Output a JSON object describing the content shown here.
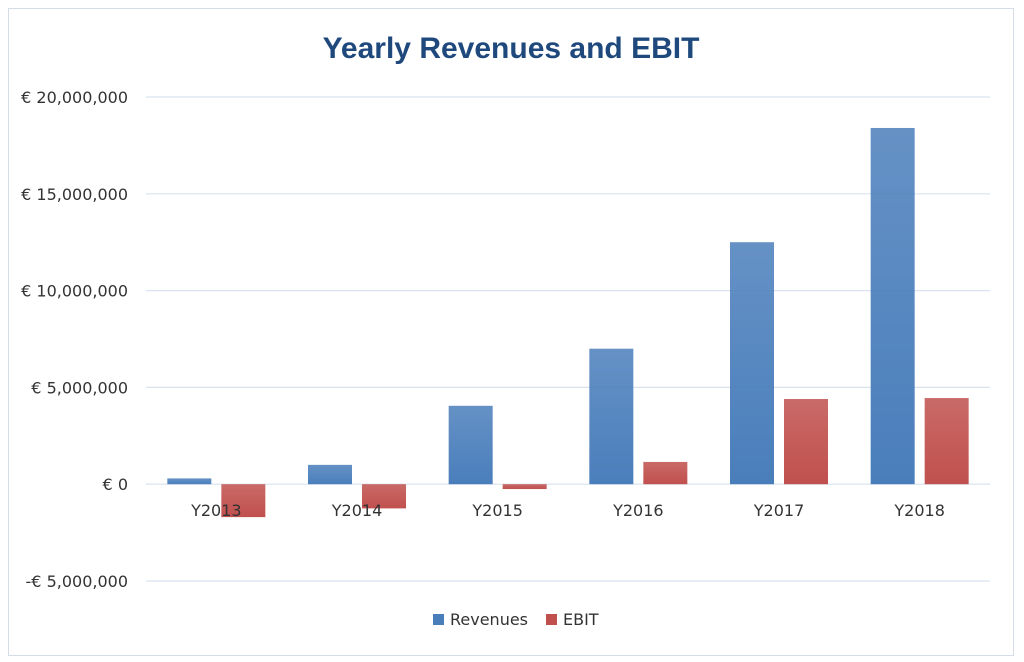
{
  "chart_data": {
    "type": "bar",
    "title": "Yearly Revenues and EBIT",
    "categories": [
      "Y2013",
      "Y2014",
      "Y2015",
      "Y2016",
      "Y2017",
      "Y2018"
    ],
    "series": [
      {
        "name": "Revenues",
        "color": "#4a7ebb",
        "values": [
          300000,
          1000000,
          4050000,
          7000000,
          12500000,
          18400000
        ]
      },
      {
        "name": "EBIT",
        "color": "#c0504d",
        "values": [
          -1700000,
          -1250000,
          -250000,
          1150000,
          4400000,
          4450000
        ]
      }
    ],
    "ylim": [
      -5000000,
      20000000
    ],
    "yticks": [
      20000000,
      15000000,
      10000000,
      5000000,
      0,
      -5000000
    ],
    "ytick_labels": [
      "€ 20,000,000",
      "€ 15,000,000",
      "€ 10,000,000",
      "€ 5,000,000",
      "€ 0",
      "-€ 5,000,000"
    ],
    "grid": true,
    "legend": "bottom-center"
  }
}
